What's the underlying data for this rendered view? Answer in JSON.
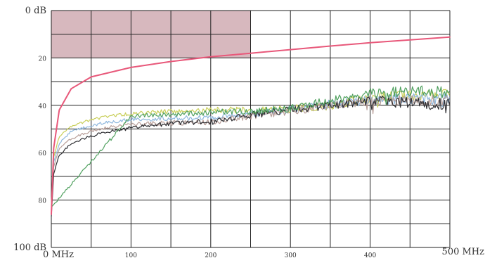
{
  "chart_data": {
    "type": "line",
    "title": "",
    "xlabel": "",
    "ylabel": "",
    "xlim": [
      0,
      500
    ],
    "ylim": [
      100,
      0
    ],
    "y_inverted": true,
    "grid": true,
    "legend": "none",
    "x_ticks": [
      {
        "value": 0,
        "label": "0 MHz"
      },
      {
        "value": 100,
        "label": "100"
      },
      {
        "value": 200,
        "label": "200"
      },
      {
        "value": 300,
        "label": "300"
      },
      {
        "value": 400,
        "label": "400"
      },
      {
        "value": 500,
        "label": "500 MHz"
      }
    ],
    "y_ticks": [
      {
        "value": 0,
        "label": "0 dB"
      },
      {
        "value": 20,
        "label": "20"
      },
      {
        "value": 40,
        "label": "40"
      },
      {
        "value": 60,
        "label": "60"
      },
      {
        "value": 80,
        "label": "80"
      },
      {
        "value": 100,
        "label": "100 dB"
      }
    ],
    "shaded_region": {
      "x": [
        0,
        250
      ],
      "y": [
        0,
        20
      ],
      "color": "#c9a0a8"
    },
    "limit_line": {
      "color": "#e8587a",
      "x": [
        0,
        3,
        10,
        25,
        50,
        100,
        150,
        200,
        250,
        300,
        350,
        400,
        450,
        500
      ],
      "y": [
        86,
        58,
        42,
        33,
        28,
        24,
        21.5,
        19.5,
        18,
        16.5,
        15,
        13.6,
        12.4,
        11.2
      ]
    },
    "series": [
      {
        "color": "#c9cf5a",
        "x": [
          0,
          3,
          10,
          25,
          50,
          75,
          100,
          150,
          200,
          250,
          300,
          350,
          400,
          450,
          500
        ],
        "y": [
          82,
          62,
          53,
          49,
          46,
          44.5,
          43.5,
          42.5,
          42,
          42,
          41.5,
          40,
          37,
          35.5,
          35.5
        ]
      },
      {
        "color": "#8fb8de",
        "x": [
          0,
          3,
          10,
          25,
          50,
          75,
          100,
          150,
          200,
          250,
          300,
          350,
          400,
          450,
          500
        ],
        "y": [
          84,
          64,
          56,
          51,
          48.5,
          47,
          46,
          45.5,
          45,
          43.5,
          42,
          39.5,
          38,
          37,
          37.5
        ]
      },
      {
        "color": "#b9a09a",
        "x": [
          0,
          3,
          10,
          25,
          50,
          75,
          100,
          150,
          200,
          250,
          300,
          350,
          400,
          450,
          500
        ],
        "y": [
          85,
          66,
          58,
          54,
          51,
          49,
          48,
          47.5,
          47,
          44.5,
          42.5,
          40,
          38,
          37.5,
          38
        ]
      },
      {
        "color": "#2f2f33",
        "x": [
          0,
          3,
          10,
          25,
          50,
          75,
          100,
          150,
          200,
          250,
          300,
          350,
          400,
          450,
          500
        ],
        "y": [
          87,
          69,
          61,
          56,
          53,
          51,
          49.5,
          47.5,
          47,
          44,
          42,
          40,
          38,
          39,
          39.5
        ]
      },
      {
        "color": "#4fa05e",
        "x": [
          0,
          100,
          200,
          250,
          300,
          350,
          400,
          450,
          500
        ],
        "y": [
          83,
          44.5,
          43,
          42.5,
          41.5,
          38,
          35,
          34,
          34.5
        ]
      }
    ]
  }
}
